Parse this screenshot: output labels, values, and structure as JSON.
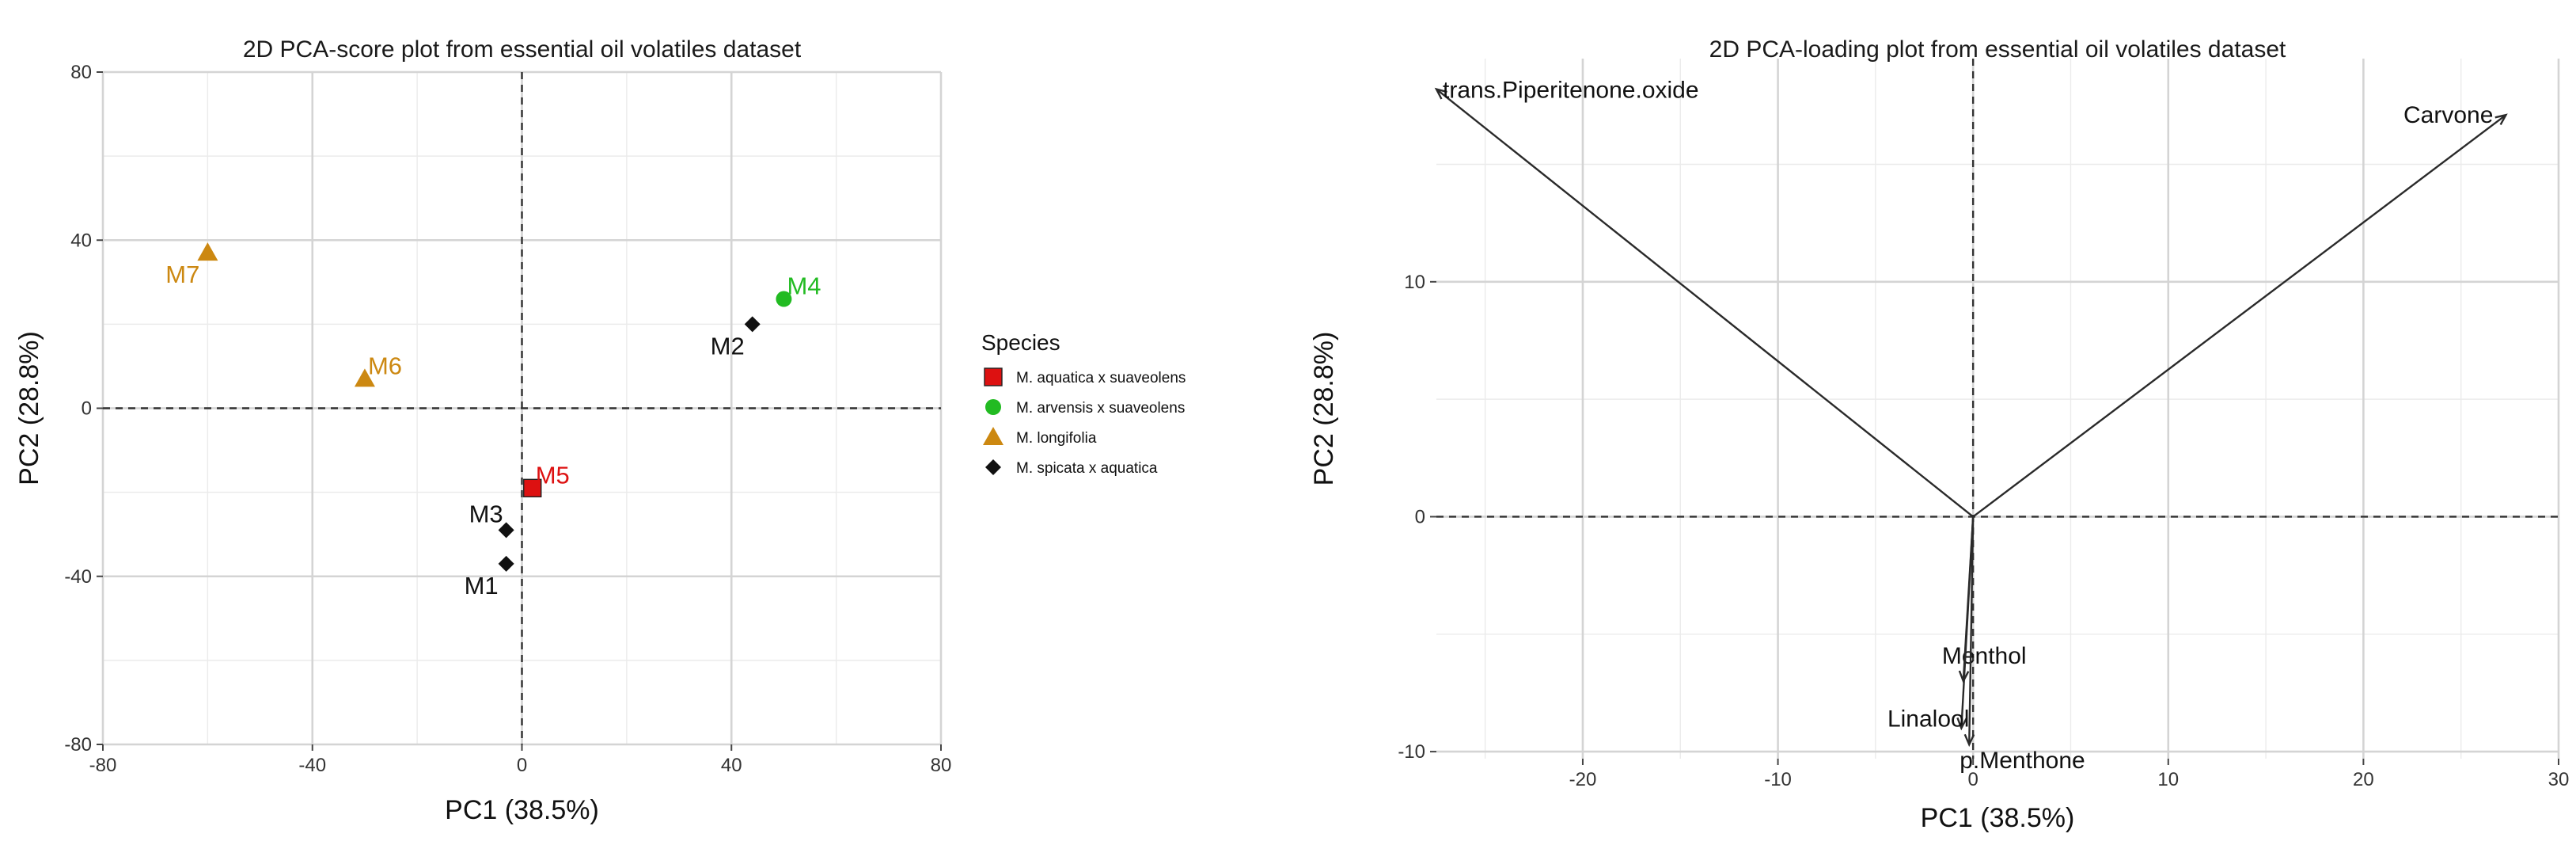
{
  "chart_data": [
    {
      "type": "scatter",
      "title": "2D PCA-score plot from essential oil volatiles dataset",
      "xlabel": "PC1 (38.5%)",
      "ylabel": "PC2 (28.8%)",
      "xlim": [
        -80,
        80
      ],
      "ylim": [
        -80,
        80
      ],
      "xticks": [
        -80,
        -40,
        0,
        40,
        80
      ],
      "yticks": [
        -80,
        -40,
        0,
        40,
        80
      ],
      "tick_labels_x": [
        "-80",
        "-40",
        "0",
        "40",
        "80"
      ],
      "tick_labels_y": [
        "80",
        "40",
        "0",
        "-40",
        "-80"
      ],
      "grid": true,
      "zero_lines": true,
      "legend": {
        "title": "Species",
        "position": "right",
        "entries": [
          {
            "label": "M. aquatica x suaveolens",
            "color": "#dd1111",
            "shape": "square"
          },
          {
            "label": "M. arvensis x suaveolens",
            "color": "#22bb22",
            "shape": "circle"
          },
          {
            "label": "M. longifolia",
            "color": "#cc8811",
            "shape": "triangle"
          },
          {
            "label": "M. spicata x aquatica",
            "color": "#111111",
            "shape": "diamond"
          }
        ]
      },
      "points": [
        {
          "label": "M1",
          "x": -3,
          "y": -37,
          "species": "M. spicata x aquatica",
          "color": "#111111",
          "shape": "diamond",
          "label_pos": "below-left"
        },
        {
          "label": "M2",
          "x": 44,
          "y": 20,
          "species": "M. spicata x aquatica",
          "color": "#111111",
          "shape": "diamond",
          "label_pos": "below-left"
        },
        {
          "label": "M3",
          "x": -3,
          "y": -29,
          "species": "M. spicata x aquatica",
          "color": "#111111",
          "shape": "diamond",
          "label_pos": "above-left"
        },
        {
          "label": "M4",
          "x": 50,
          "y": 26,
          "species": "M. arvensis x suaveolens",
          "color": "#22bb22",
          "shape": "circle",
          "label_pos": "above-right"
        },
        {
          "label": "M5",
          "x": 2,
          "y": -19,
          "species": "M. aquatica x suaveolens",
          "color": "#dd1111",
          "shape": "square",
          "label_pos": "above-right"
        },
        {
          "label": "M6",
          "x": -30,
          "y": 7,
          "species": "M. longifolia",
          "color": "#cc8811",
          "shape": "triangle",
          "label_pos": "above-right"
        },
        {
          "label": "M7",
          "x": -60,
          "y": 37,
          "species": "M. longifolia",
          "color": "#cc8811",
          "shape": "triangle",
          "label_pos": "below-left"
        }
      ]
    },
    {
      "type": "biplot-loadings",
      "title": "2D PCA-loading plot from essential oil volatiles dataset",
      "xlabel": "PC1 (38.5%)",
      "ylabel": "PC2 (28.8%)",
      "xlim": [
        -27.5,
        30
      ],
      "ylim": [
        -10.3,
        19.5
      ],
      "xticks": [
        -20,
        -10,
        0,
        10,
        20,
        30
      ],
      "yticks": [
        -10,
        0,
        10
      ],
      "tick_labels_x": [
        "-20",
        "-10",
        "0",
        "10",
        "20",
        "30"
      ],
      "tick_labels_y": [
        "-10",
        "0",
        "10"
      ],
      "grid": true,
      "zero_lines": true,
      "vectors": [
        {
          "label": "trans.Piperitenone.oxide",
          "x": -27.5,
          "y": 18.2,
          "label_pos": "right"
        },
        {
          "label": "Carvone",
          "x": 27.3,
          "y": 17.1,
          "label_pos": "left"
        },
        {
          "label": "Menthol",
          "x": -0.5,
          "y": -7.0,
          "label_pos": "above-right"
        },
        {
          "label": "Linalool",
          "x": -0.6,
          "y": -9.0,
          "label_pos": "above-left"
        },
        {
          "label": "p.Menthone",
          "x": -0.2,
          "y": -9.7,
          "label_pos": "right"
        }
      ]
    }
  ]
}
